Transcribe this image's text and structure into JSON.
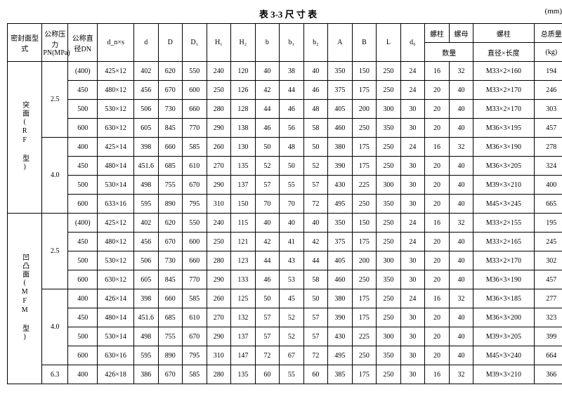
{
  "title": "表 3-3  尺 寸 表",
  "unit": "(mm)",
  "head": {
    "seal": "密封面型式",
    "pn": "公称压力PN(MPa)",
    "dn": "公称直径DN",
    "dxs": "d_n×s",
    "d": "d",
    "D": "D",
    "D1": "D₁",
    "H1": "H₁",
    "H2": "H₂",
    "b": "b",
    "b1": "b₁",
    "b2": "b₂",
    "A": "A",
    "B": "B",
    "L": "L",
    "d0": "d₀",
    "stud": "螺柱",
    "nut": "螺母",
    "stud2": "螺柱",
    "qty": "数量",
    "spec": "直径×长度",
    "wt": "总质量",
    "kg": "(kg)"
  },
  "groups": [
    {
      "seal": "突面(RF 型)",
      "blocks": [
        {
          "pn": "2.5",
          "rows": [
            {
              "dn": "(400)",
              "dxs": "425×12",
              "d": "402",
              "D": "620",
              "D1": "550",
              "H1": "240",
              "H2": "120",
              "b": "40",
              "b1": "38",
              "b2": "40",
              "A": "350",
              "B": "150",
              "L": "250",
              "d0": "24",
              "q1": "16",
              "q2": "32",
              "spec": "M33×2×160",
              "wt": "194"
            },
            {
              "dn": "450",
              "dxs": "480×12",
              "d": "456",
              "D": "670",
              "D1": "600",
              "H1": "250",
              "H2": "126",
              "b": "42",
              "b1": "44",
              "b2": "46",
              "A": "375",
              "B": "175",
              "L": "250",
              "d0": "24",
              "q1": "20",
              "q2": "40",
              "spec": "M33×2×170",
              "wt": "246"
            },
            {
              "dn": "500",
              "dxs": "530×12",
              "d": "506",
              "D": "730",
              "D1": "660",
              "H1": "280",
              "H2": "128",
              "b": "44",
              "b1": "46",
              "b2": "48",
              "A": "405",
              "B": "200",
              "L": "300",
              "d0": "30",
              "q1": "20",
              "q2": "40",
              "spec": "M33×2×170",
              "wt": "303"
            },
            {
              "dn": "600",
              "dxs": "630×12",
              "d": "605",
              "D": "845",
              "D1": "770",
              "H1": "290",
              "H2": "138",
              "b": "46",
              "b1": "56",
              "b2": "58",
              "A": "460",
              "B": "250",
              "L": "350",
              "d0": "30",
              "q1": "20",
              "q2": "40",
              "spec": "M36×3×195",
              "wt": "457"
            }
          ]
        },
        {
          "pn": "4.0",
          "rows": [
            {
              "dn": "400",
              "dxs": "425×14",
              "d": "398",
              "D": "660",
              "D1": "585",
              "H1": "260",
              "H2": "130",
              "b": "50",
              "b1": "48",
              "b2": "50",
              "A": "380",
              "B": "175",
              "L": "250",
              "d0": "24",
              "q1": "16",
              "q2": "32",
              "spec": "M36×3×190",
              "wt": "278"
            },
            {
              "dn": "450",
              "dxs": "480×14",
              "d": "451.6",
              "D": "685",
              "D1": "610",
              "H1": "270",
              "H2": "135",
              "b": "52",
              "b1": "50",
              "b2": "52",
              "A": "390",
              "B": "175",
              "L": "250",
              "d0": "30",
              "q1": "20",
              "q2": "40",
              "spec": "M36×3×205",
              "wt": "324"
            },
            {
              "dn": "500",
              "dxs": "530×14",
              "d": "498",
              "D": "755",
              "D1": "670",
              "H1": "290",
              "H2": "137",
              "b": "57",
              "b1": "55",
              "b2": "57",
              "A": "430",
              "B": "225",
              "L": "300",
              "d0": "30",
              "q1": "20",
              "q2": "40",
              "spec": "M39×3×210",
              "wt": "400"
            },
            {
              "dn": "600",
              "dxs": "633×16",
              "d": "595",
              "D": "890",
              "D1": "795",
              "H1": "310",
              "H2": "150",
              "b": "70",
              "b1": "70",
              "b2": "72",
              "A": "495",
              "B": "250",
              "L": "350",
              "d0": "30",
              "q1": "20",
              "q2": "40",
              "spec": "M45×3×245",
              "wt": "665"
            }
          ]
        }
      ]
    },
    {
      "seal": "凹凸面(MFM 型)",
      "blocks": [
        {
          "pn": "2.5",
          "rows": [
            {
              "dn": "(400)",
              "dxs": "425×12",
              "d": "402",
              "D": "620",
              "D1": "550",
              "H1": "240",
              "H2": "115",
              "b": "40",
              "b1": "40",
              "b2": "40",
              "A": "350",
              "B": "150",
              "L": "250",
              "d0": "24",
              "q1": "16",
              "q2": "32",
              "spec": "M33×2×155",
              "wt": "195"
            },
            {
              "dn": "450",
              "dxs": "480×12",
              "d": "456",
              "D": "670",
              "D1": "600",
              "H1": "250",
              "H2": "121",
              "b": "42",
              "b1": "41",
              "b2": "42",
              "A": "375",
              "B": "175",
              "L": "250",
              "d0": "24",
              "q1": "20",
              "q2": "40",
              "spec": "M33×2×165",
              "wt": "245"
            },
            {
              "dn": "500",
              "dxs": "530×12",
              "d": "506",
              "D": "730",
              "D1": "660",
              "H1": "280",
              "H2": "123",
              "b": "44",
              "b1": "43",
              "b2": "44",
              "A": "405",
              "B": "200",
              "L": "300",
              "d0": "30",
              "q1": "20",
              "q2": "40",
              "spec": "M33×2×170",
              "wt": "302"
            },
            {
              "dn": "600",
              "dxs": "630×12",
              "d": "605",
              "D": "845",
              "D1": "770",
              "H1": "290",
              "H2": "133",
              "b": "46",
              "b1": "53",
              "b2": "58",
              "A": "460",
              "B": "250",
              "L": "350",
              "d0": "30",
              "q1": "20",
              "q2": "40",
              "spec": "M36×3×190",
              "wt": "457"
            }
          ]
        },
        {
          "pn": "4.0",
          "rows": [
            {
              "dn": "400",
              "dxs": "426×14",
              "d": "398",
              "D": "660",
              "D1": "585",
              "H1": "260",
              "H2": "125",
              "b": "50",
              "b1": "45",
              "b2": "50",
              "A": "380",
              "B": "175",
              "L": "250",
              "d0": "24",
              "q1": "16",
              "q2": "32",
              "spec": "M36×3×185",
              "wt": "277"
            },
            {
              "dn": "450",
              "dxs": "480×14",
              "d": "451.6",
              "D": "685",
              "D1": "610",
              "H1": "270",
              "H2": "132",
              "b": "57",
              "b1": "52",
              "b2": "57",
              "A": "390",
              "B": "175",
              "L": "250",
              "d0": "30",
              "q1": "20",
              "q2": "40",
              "spec": "M36×3×200",
              "wt": "323"
            },
            {
              "dn": "500",
              "dxs": "530×14",
              "d": "498",
              "D": "755",
              "D1": "670",
              "H1": "290",
              "H2": "137",
              "b": "57",
              "b1": "52",
              "b2": "57",
              "A": "430",
              "B": "225",
              "L": "300",
              "d0": "30",
              "q1": "20",
              "q2": "40",
              "spec": "M39×3×205",
              "wt": "399"
            },
            {
              "dn": "600",
              "dxs": "630×16",
              "d": "595",
              "D": "890",
              "D1": "795",
              "H1": "310",
              "H2": "147",
              "b": "72",
              "b1": "67",
              "b2": "72",
              "A": "495",
              "B": "250",
              "L": "350",
              "d0": "30",
              "q1": "20",
              "q2": "40",
              "spec": "M45×3×240",
              "wt": "664"
            }
          ]
        },
        {
          "pn": "6.3",
          "rows": [
            {
              "dn": "400",
              "dxs": "426×18",
              "d": "386",
              "D": "670",
              "D1": "585",
              "H1": "280",
              "H2": "135",
              "b": "60",
              "b1": "55",
              "b2": "60",
              "A": "385",
              "B": "175",
              "L": "250",
              "d0": "30",
              "q1": "16",
              "q2": "32",
              "spec": "M39×3×210",
              "wt": "366"
            }
          ]
        }
      ]
    }
  ]
}
